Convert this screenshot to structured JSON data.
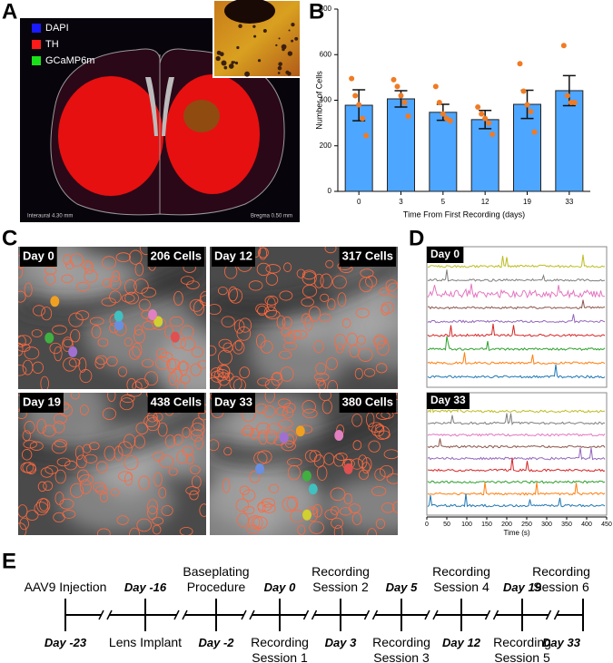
{
  "panel_a": {
    "label": "A",
    "legend": [
      {
        "name": "DAPI",
        "color": "#1a1aff"
      },
      {
        "name": "TH",
        "color": "#ff1a1a"
      },
      {
        "name": "GCaMP6m",
        "color": "#1ae01a"
      }
    ],
    "left_note": "Interaural 4.30 mm",
    "right_note": "Bregma 0.50 mm"
  },
  "panel_b_label": "B",
  "chart_data": {
    "type": "bar",
    "ylabel": "Number of Cells",
    "xlabel": "Time From First Recording (days)",
    "categories": [
      "0",
      "3",
      "5",
      "12",
      "19",
      "33"
    ],
    "values": [
      378,
      406,
      347,
      315,
      382,
      442
    ],
    "errors": [
      68,
      36,
      35,
      40,
      62,
      66
    ],
    "points": [
      [
        495,
        420,
        380,
        320,
        245
      ],
      [
        490,
        460,
        420,
        390,
        330
      ],
      [
        460,
        390,
        340,
        320,
        310
      ],
      [
        370,
        340,
        320,
        300,
        250
      ],
      [
        560,
        440,
        380,
        350,
        260
      ],
      [
        640,
        420,
        390,
        390
      ]
    ],
    "color": "#4da6ff",
    "point_color": "#f07b24",
    "ylim": [
      0,
      800
    ],
    "yticks": [
      0,
      200,
      400,
      600,
      800
    ]
  },
  "panel_c": {
    "label": "C",
    "images": [
      {
        "day": "Day 0",
        "cells": "206 Cells"
      },
      {
        "day": "Day 12",
        "cells": "317 Cells"
      },
      {
        "day": "Day 19",
        "cells": "438 Cells"
      },
      {
        "day": "Day 33",
        "cells": "380 Cells"
      }
    ]
  },
  "panel_d": {
    "label": "D",
    "plots": [
      {
        "title": "Day 0"
      },
      {
        "title": "Day 33"
      }
    ],
    "trace_colors": [
      "#bcbd22",
      "#7f7f7f",
      "#e377c2",
      "#8c564b",
      "#9467bd",
      "#d62728",
      "#2ca02c",
      "#ff7f0e",
      "#1f77b4"
    ],
    "xlabel": "Time (s)",
    "xlim": [
      0,
      450
    ],
    "xticks": [
      0,
      50,
      100,
      150,
      200,
      250,
      300,
      350,
      400,
      450
    ]
  },
  "panel_e": {
    "label": "E",
    "events": [
      {
        "text": "AAV9 Injection",
        "day": "Day -23"
      },
      {
        "text": "Lens Implant",
        "day": "Day -16"
      },
      {
        "text": "Baseplating Procedure",
        "day": "Day -2"
      },
      {
        "text": "Recording Session 1",
        "day": "Day 0"
      },
      {
        "text": "Recording Session 2",
        "day": "Day 3"
      },
      {
        "text": "Recording Session 3",
        "day": "Day 5"
      },
      {
        "text": "Recording Session 4",
        "day": "Day 12"
      },
      {
        "text": "Recording Session 5",
        "day": "Day 19"
      },
      {
        "text": "Recording Session 6",
        "day": "Day 33"
      }
    ]
  }
}
